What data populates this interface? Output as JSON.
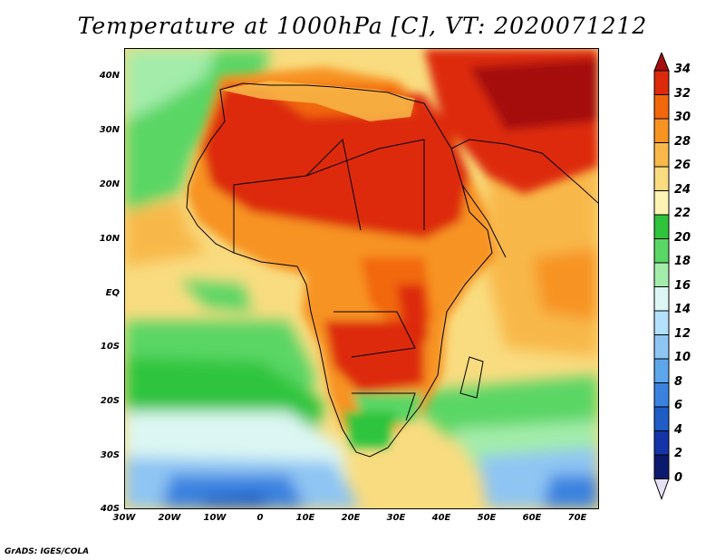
{
  "title": "Temperature at 1000hPa [C], VT: 2020071212",
  "credit": "GrADS: IGES/COLA",
  "map": {
    "lon_range": [
      -30,
      75
    ],
    "lat_range": [
      -40,
      45
    ],
    "lat_ticks": [
      {
        "value": 40,
        "label": "40N"
      },
      {
        "value": 30,
        "label": "30N"
      },
      {
        "value": 20,
        "label": "20N"
      },
      {
        "value": 10,
        "label": "10N"
      },
      {
        "value": 0,
        "label": "EQ"
      },
      {
        "value": -10,
        "label": "10S"
      },
      {
        "value": -20,
        "label": "20S"
      },
      {
        "value": -30,
        "label": "30S"
      },
      {
        "value": -40,
        "label": "40S"
      }
    ],
    "lon_ticks": [
      {
        "value": -30,
        "label": "30W"
      },
      {
        "value": -20,
        "label": "20W"
      },
      {
        "value": -10,
        "label": "10W"
      },
      {
        "value": 0,
        "label": "0"
      },
      {
        "value": 10,
        "label": "10E"
      },
      {
        "value": 20,
        "label": "20E"
      },
      {
        "value": 30,
        "label": "30E"
      },
      {
        "value": 40,
        "label": "40E"
      },
      {
        "value": 50,
        "label": "50E"
      },
      {
        "value": 60,
        "label": "60E"
      },
      {
        "value": 70,
        "label": "70E"
      }
    ]
  },
  "colorbar": {
    "levels": [
      {
        "label": "34",
        "color": "#a50f0f"
      },
      {
        "label": "32",
        "color": "#dd2a0a"
      },
      {
        "label": "30",
        "color": "#f2670c"
      },
      {
        "label": "28",
        "color": "#f79320"
      },
      {
        "label": "26",
        "color": "#f8b84a"
      },
      {
        "label": "24",
        "color": "#f9dc80"
      },
      {
        "label": "22",
        "color": "#fdf3b4"
      },
      {
        "label": "20",
        "color": "#2ec43c"
      },
      {
        "label": "18",
        "color": "#5ad665"
      },
      {
        "label": "16",
        "color": "#a3ecaa"
      },
      {
        "label": "14",
        "color": "#dcf7f3"
      },
      {
        "label": "12",
        "color": "#b3e0fa"
      },
      {
        "label": "10",
        "color": "#8ec5f3"
      },
      {
        "label": "8",
        "color": "#5da6ec"
      },
      {
        "label": "6",
        "color": "#3b82e0"
      },
      {
        "label": "4",
        "color": "#1f5cc6"
      },
      {
        "label": "2",
        "color": "#1434a8"
      },
      {
        "label": "0",
        "color": "#0c1a6e"
      }
    ],
    "bottom_color": "#e6e0f5"
  }
}
